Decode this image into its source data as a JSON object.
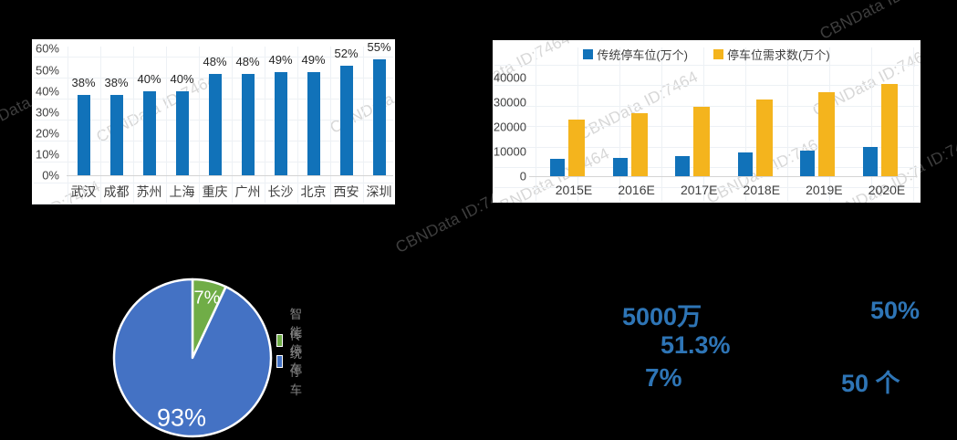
{
  "watermark": {
    "text": "CBNData ID:7464"
  },
  "chart_data": [
    {
      "id": "city-parking-coverage",
      "type": "bar",
      "categories": [
        "武汉",
        "成都",
        "苏州",
        "上海",
        "重庆",
        "广州",
        "长沙",
        "北京",
        "西安",
        "深圳"
      ],
      "values": [
        38,
        38,
        40,
        40,
        48,
        48,
        49,
        49,
        52,
        55
      ],
      "data_labels": [
        "38%",
        "38%",
        "40%",
        "40%",
        "48%",
        "48%",
        "49%",
        "49%",
        "52%",
        "55%"
      ],
      "y_ticks": [
        "0%",
        "10%",
        "20%",
        "30%",
        "40%",
        "50%",
        "60%"
      ],
      "y_tick_values": [
        0,
        10,
        20,
        30,
        40,
        50,
        60
      ],
      "ylim": [
        0,
        60
      ],
      "bar_color": "#1172b9",
      "grid": true,
      "legend_position": "none",
      "title": "",
      "xlabel": "",
      "ylabel": ""
    },
    {
      "id": "parking-supply-vs-demand",
      "type": "bar",
      "categories": [
        "2015E",
        "2016E",
        "2017E",
        "2018E",
        "2019E",
        "2020E"
      ],
      "series": [
        {
          "name": "传统停车位(万个)",
          "color": "#1172b9",
          "values": [
            7000,
            7500,
            8000,
            9500,
            10500,
            12000
          ]
        },
        {
          "name": "停车位需求数(万个)",
          "color": "#f4b41d",
          "values": [
            23000,
            25500,
            28000,
            31000,
            34000,
            37500
          ]
        }
      ],
      "y_ticks": [
        "0",
        "10000",
        "20000",
        "30000",
        "40000"
      ],
      "y_tick_values": [
        0,
        10000,
        20000,
        30000,
        40000
      ],
      "ylim": [
        0,
        40000
      ],
      "grid": true,
      "legend_position": "top",
      "title": "",
      "xlabel": "",
      "ylabel": ""
    },
    {
      "id": "smart-vs-traditional-parking",
      "type": "pie",
      "slices": [
        {
          "label": "智能停车",
          "value": 7,
          "text": "7%",
          "color": "#70ad47"
        },
        {
          "label": "传统停车",
          "value": 93,
          "text": "93%",
          "color": "#4472c4"
        }
      ],
      "legend_position": "right",
      "title": ""
    }
  ],
  "callouts": {
    "color": "#2e75b6",
    "items": [
      {
        "text": "5000万"
      },
      {
        "text": "50%"
      },
      {
        "text": "51.3%"
      },
      {
        "text": "7%"
      },
      {
        "text": "50 个"
      }
    ]
  }
}
